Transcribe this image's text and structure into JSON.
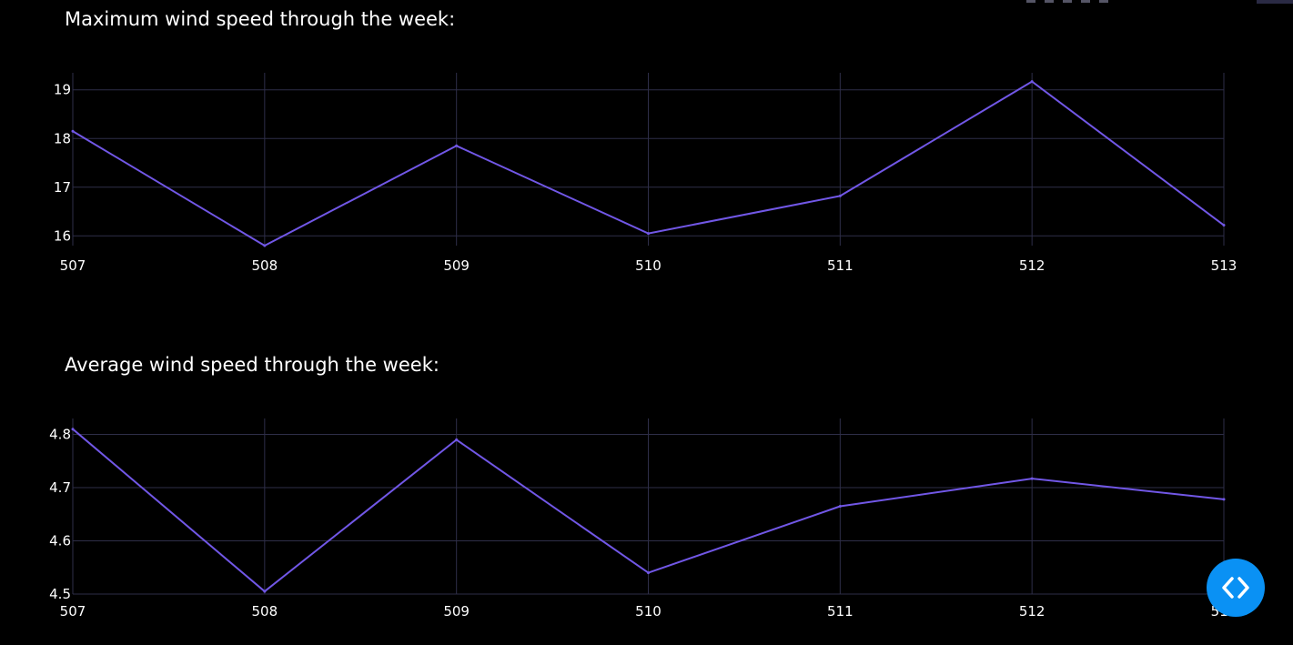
{
  "colors": {
    "background": "#000000",
    "line": "#7157e6",
    "grid": "#2e2e48",
    "text": "#ffffff",
    "code_button": "#0a91f4"
  },
  "code_button": {
    "icon": "code-brackets-icon"
  },
  "modebar": {
    "icon": "plot-modebar-icons"
  },
  "chart_data": [
    {
      "type": "line",
      "title": "Maximum wind speed through the week:",
      "x": [
        507,
        508,
        509,
        510,
        511,
        512,
        513
      ],
      "series": [
        {
          "values": [
            18.15,
            15.8,
            17.85,
            16.05,
            16.82,
            19.17,
            16.22
          ]
        }
      ],
      "xlim": [
        507,
        513
      ],
      "ylim": [
        15.8,
        19.35
      ],
      "x_ticks": [
        "507",
        "508",
        "509",
        "510",
        "511",
        "512",
        "513"
      ],
      "y_ticks": [
        "16",
        "17",
        "18",
        "19"
      ],
      "xlabel": "",
      "ylabel": "",
      "grid": true,
      "legend": false
    },
    {
      "type": "line",
      "title": "Average wind speed through the week:",
      "x": [
        507,
        508,
        509,
        510,
        511,
        512,
        513
      ],
      "series": [
        {
          "values": [
            4.81,
            4.505,
            4.79,
            4.54,
            4.665,
            4.717,
            4.678
          ]
        }
      ],
      "xlim": [
        507,
        513
      ],
      "ylim": [
        4.5,
        4.83
      ],
      "x_ticks": [
        "507",
        "508",
        "509",
        "510",
        "511",
        "512",
        "513"
      ],
      "y_ticks": [
        "4.5",
        "4.6",
        "4.7",
        "4.8"
      ],
      "xlabel": "",
      "ylabel": "",
      "grid": true,
      "legend": false
    }
  ]
}
